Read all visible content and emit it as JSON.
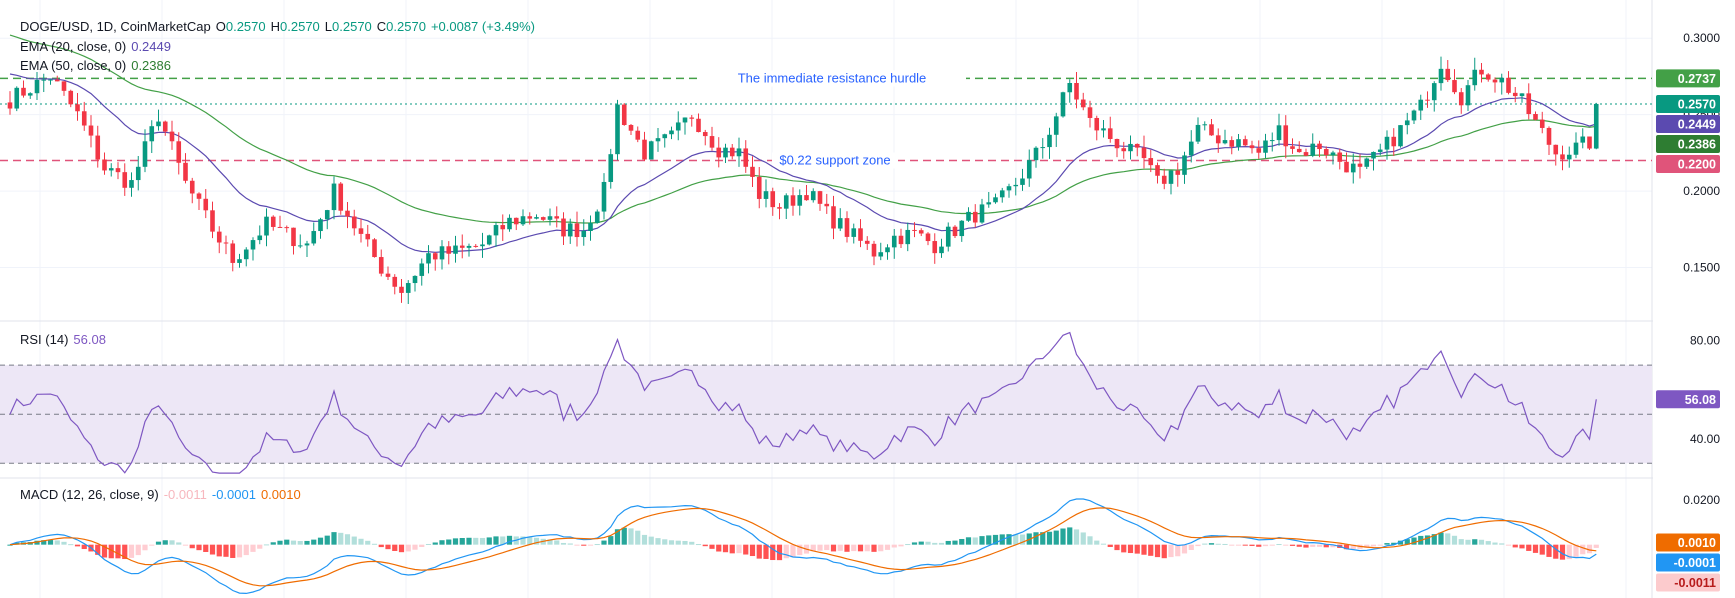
{
  "header": {
    "symbol": "DOGE/USD, 1D, CoinMarketCap",
    "o_label": "O",
    "o_value": "0.2570",
    "h_label": "H",
    "h_value": "0.2570",
    "l_label": "L",
    "l_value": "0.2570",
    "c_label": "C",
    "c_value": "0.2570",
    "change": "+0.0087 (+3.49%)"
  },
  "ema20": {
    "label": "EMA (20, close, 0)",
    "value": "0.2449",
    "color": "#5b4ab0"
  },
  "ema50": {
    "label": "EMA (50, close, 0)",
    "value": "0.2386",
    "color": "#43a047"
  },
  "rsi_legend": {
    "label": "RSI (14)",
    "value": "56.08",
    "color": "#7e57c2"
  },
  "macd_legend": {
    "label": "MACD (12, 26, close, 9)",
    "hist": "-0.0011",
    "macd": "-0.0001",
    "signal": "0.0010"
  },
  "colors": {
    "up": "#089981",
    "down": "#f23645",
    "resistance": "#43a047",
    "support": "#e0547a",
    "annotation": "#2962ff",
    "macd_line": "#2196f3",
    "signal_line": "#ef6c00",
    "rsi_band": "#ede7f6"
  },
  "chart_data": [
    {
      "type": "candlestick",
      "title": "DOGE/USD, 1D, CoinMarketCap",
      "ylim": [
        0.115,
        0.325
      ],
      "y_ticks": [
        "0.3000",
        "0.2500",
        "0.2000",
        "0.1500"
      ],
      "y_tick_values": [
        0.3,
        0.25,
        0.2,
        0.15
      ],
      "waypoints": [
        [
          0,
          0.26
        ],
        [
          6,
          0.275
        ],
        [
          10,
          0.25
        ],
        [
          14,
          0.215
        ],
        [
          18,
          0.205
        ],
        [
          22,
          0.25
        ],
        [
          26,
          0.205
        ],
        [
          30,
          0.175
        ],
        [
          33,
          0.155
        ],
        [
          38,
          0.178
        ],
        [
          44,
          0.165
        ],
        [
          48,
          0.2
        ],
        [
          52,
          0.17
        ],
        [
          55,
          0.15
        ],
        [
          58,
          0.135
        ],
        [
          62,
          0.158
        ],
        [
          66,
          0.16
        ],
        [
          70,
          0.165
        ],
        [
          74,
          0.18
        ],
        [
          78,
          0.185
        ],
        [
          82,
          0.175
        ],
        [
          85,
          0.175
        ],
        [
          88,
          0.2
        ],
        [
          90,
          0.255
        ],
        [
          94,
          0.225
        ],
        [
          98,
          0.235
        ],
        [
          101,
          0.25
        ],
        [
          105,
          0.228
        ],
        [
          108,
          0.225
        ],
        [
          111,
          0.198
        ],
        [
          114,
          0.19
        ],
        [
          118,
          0.2
        ],
        [
          121,
          0.185
        ],
        [
          125,
          0.17
        ],
        [
          128,
          0.16
        ],
        [
          131,
          0.17
        ],
        [
          134,
          0.172
        ],
        [
          137,
          0.165
        ],
        [
          140,
          0.175
        ],
        [
          143,
          0.185
        ],
        [
          146,
          0.19
        ],
        [
          149,
          0.205
        ],
        [
          153,
          0.23
        ],
        [
          157,
          0.27
        ],
        [
          160,
          0.245
        ],
        [
          163,
          0.235
        ],
        [
          166,
          0.225
        ],
        [
          168,
          0.22
        ],
        [
          170,
          0.205
        ],
        [
          173,
          0.215
        ],
        [
          176,
          0.24
        ],
        [
          179,
          0.235
        ],
        [
          182,
          0.232
        ],
        [
          185,
          0.225
        ],
        [
          188,
          0.24
        ],
        [
          191,
          0.225
        ],
        [
          194,
          0.23
        ],
        [
          197,
          0.22
        ],
        [
          200,
          0.212
        ],
        [
          203,
          0.225
        ],
        [
          206,
          0.24
        ],
        [
          209,
          0.255
        ],
        [
          212,
          0.285
        ],
        [
          215,
          0.262
        ],
        [
          218,
          0.28
        ],
        [
          221,
          0.272
        ],
        [
          224,
          0.258
        ],
        [
          227,
          0.238
        ],
        [
          229,
          0.225
        ],
        [
          232,
          0.228
        ],
        [
          234,
          0.232
        ],
        [
          235,
          0.257
        ]
      ],
      "ema20_last": 0.2449,
      "ema50_last": 0.2386,
      "last_price": 0.257,
      "price_labels": [
        {
          "text": "0.2737",
          "value": 0.2737,
          "bg": "#43a047"
        },
        {
          "text": "0.2570",
          "value": 0.257,
          "bg": "#089981"
        },
        {
          "text": "0.2449",
          "value": 0.2449,
          "bg": "#5b4ab0"
        },
        {
          "text": "0.2386",
          "value": 0.2386,
          "bg": "#2e7d32"
        },
        {
          "text": "0.2200",
          "value": 0.22,
          "bg": "#e0547a"
        }
      ],
      "resistance": {
        "value": 0.2737,
        "label": "The immediate resistance hurdle"
      },
      "support": {
        "value": 0.22,
        "label": "$0.22 support zone"
      }
    },
    {
      "type": "line",
      "name": "RSI (14)",
      "ylim": [
        24,
        88
      ],
      "y_ticks": [
        "80.00",
        "40.00"
      ],
      "y_tick_values": [
        80,
        40
      ],
      "levels": [
        70,
        50,
        30
      ],
      "last": 56.08,
      "label": "56.08"
    },
    {
      "type": "macd",
      "name": "MACD (12, 26, close, 9)",
      "ylim": [
        -0.024,
        0.03
      ],
      "y_ticks": [
        "0.0200"
      ],
      "y_tick_values": [
        0.02
      ],
      "labels": [
        {
          "text": "0.0010",
          "value": 0.001,
          "bg": "#ef6c00"
        },
        {
          "text": "-0.0001",
          "value": -0.0001,
          "bg": "#2196f3"
        },
        {
          "text": "-0.0011",
          "value": -0.0011,
          "bg": "#fccbcd",
          "fg": "#b71c1c"
        }
      ]
    }
  ]
}
